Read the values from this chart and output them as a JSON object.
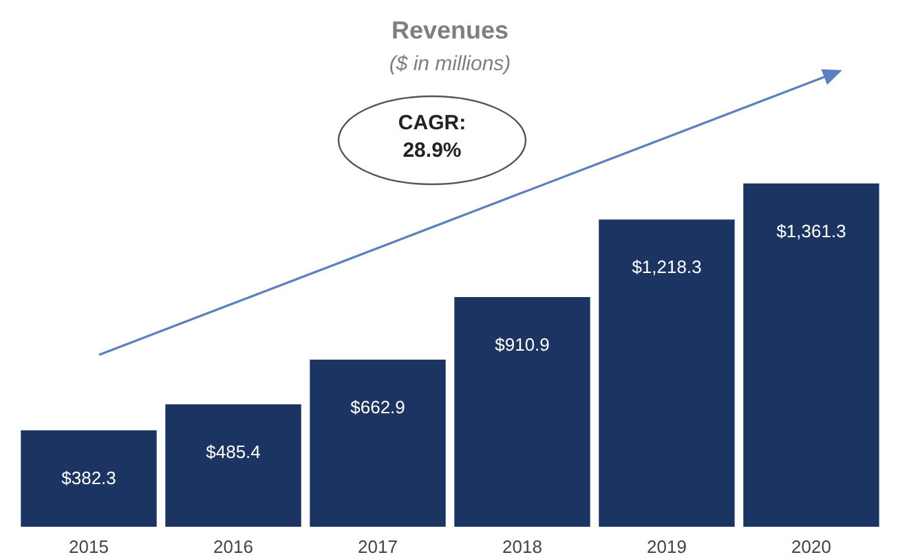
{
  "chart_data": {
    "type": "bar",
    "title": "Revenues",
    "subtitle": "($ in millions)",
    "categories": [
      "2015",
      "2016",
      "2017",
      "2018",
      "2019",
      "2020"
    ],
    "values": [
      382.3,
      485.4,
      662.9,
      910.9,
      1218.3,
      1361.3
    ],
    "value_labels": [
      "$382.3",
      "$485.4",
      "$662.9",
      "$910.9",
      "$1,218.3",
      "$1,361.3"
    ],
    "color": "#1c3461",
    "annotations": [
      "CAGR:\n28.9%"
    ]
  }
}
